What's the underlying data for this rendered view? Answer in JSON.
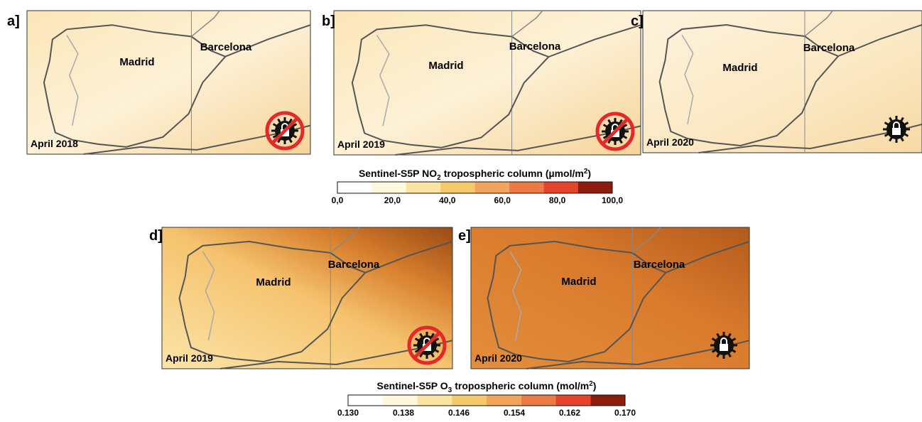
{
  "panels": [
    {
      "label": "a]",
      "madrid": "Madrid",
      "barcelona": "Barcelona",
      "date": "April 2018"
    },
    {
      "label": "b]",
      "madrid": "Madrid",
      "barcelona": "Barcelona",
      "date": "April 2019"
    },
    {
      "label": "c]",
      "madrid": "Madrid",
      "barcelona": "Barcelona",
      "date": "April 2020"
    },
    {
      "label": "d]",
      "madrid": "Madrid",
      "barcelona": "Barcelona",
      "date": "April 2019"
    },
    {
      "label": "e]",
      "madrid": "Madrid",
      "barcelona": "Barcelona",
      "date": "April 2020"
    }
  ],
  "colorbars": [
    {
      "title": {
        "text1": "Sentinel-S5P NO",
        "sub": "2",
        "text2": "tropospheric column (µmol/m",
        "sup": "2",
        "text3": ")"
      },
      "ticks": [
        "0,0",
        "20,0",
        "40,0",
        "60,0",
        "80,0",
        "100,0"
      ],
      "colors": [
        "#ffffff",
        "#fff8dc",
        "#fbe3a2",
        "#f5c96a",
        "#f2a35c",
        "#ec7a45",
        "#e5432c",
        "#8c1c0e"
      ]
    },
    {
      "title": {
        "text1": "Sentinel-S5P O",
        "sub": "3",
        "text2": "tropospheric column (mol/m",
        "sup": "2",
        "text3": ")"
      },
      "ticks": [
        "0.130",
        "0.138",
        "0.146",
        "0.154",
        "0.162",
        "0.170"
      ],
      "colors": [
        "#ffffff",
        "#fff8dc",
        "#fbe3a2",
        "#f5c96a",
        "#f2a35c",
        "#ec7a45",
        "#e5432c",
        "#8c1c0e"
      ]
    }
  ]
}
